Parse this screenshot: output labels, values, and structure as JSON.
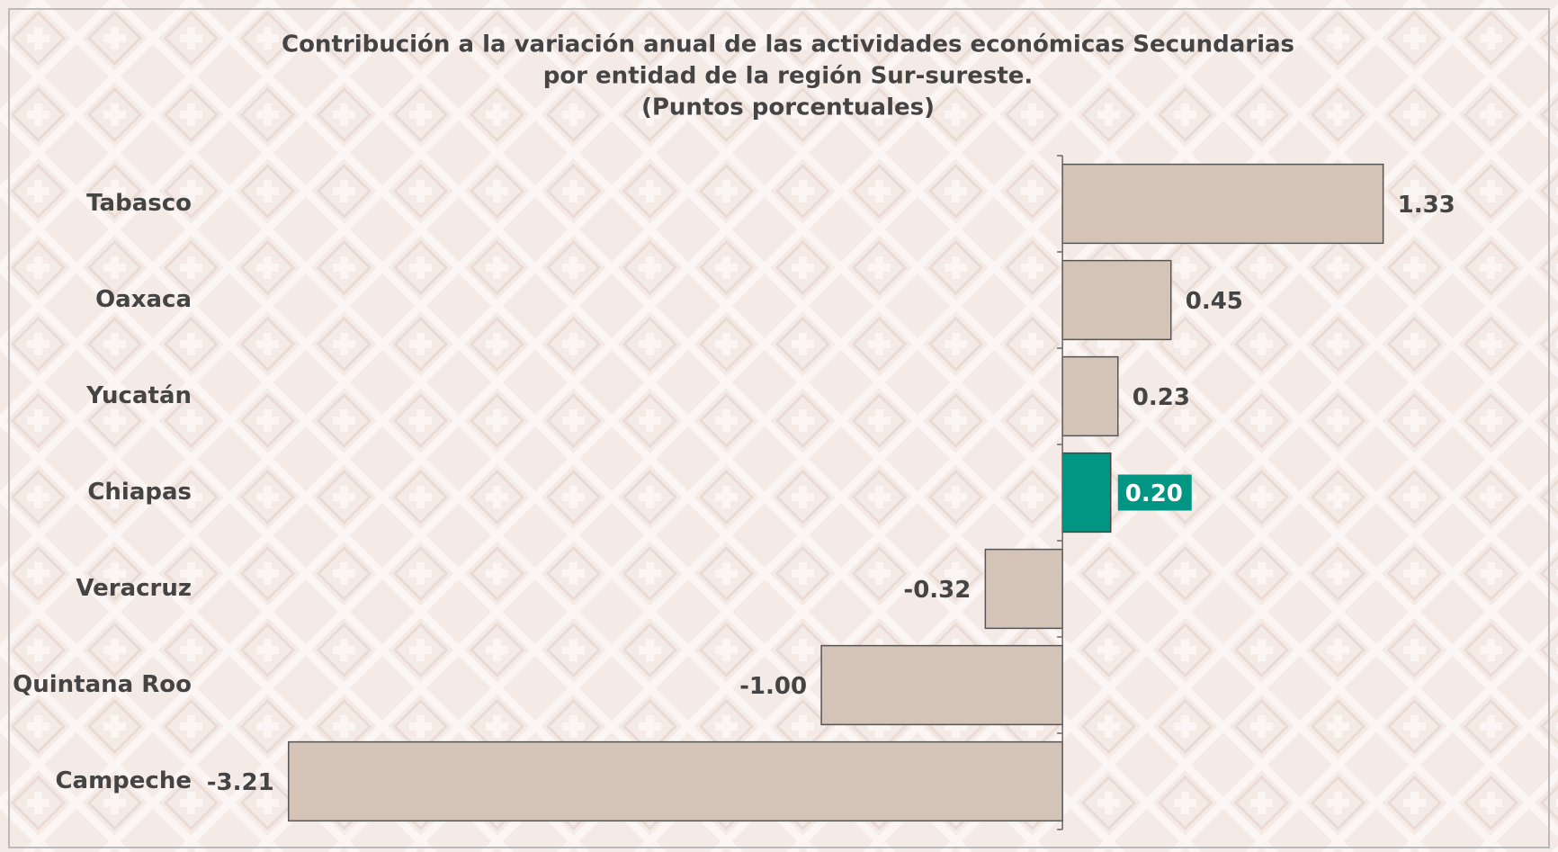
{
  "chart_data": {
    "type": "bar",
    "orientation": "horizontal",
    "title": [
      "Contribución a la variación anual de las actividades económicas Secundarias",
      "por entidad de la región Sur-sureste."
    ],
    "subtitle": "(Puntos porcentuales)",
    "categories": [
      "Tabasco",
      "Oaxaca",
      "Yucatán",
      "Chiapas",
      "Veracruz",
      "Quintana Roo",
      "Campeche"
    ],
    "values": [
      1.33,
      0.45,
      0.23,
      0.2,
      -0.32,
      -1.0,
      -3.21
    ],
    "value_labels": [
      "1.33",
      "0.45",
      "0.23",
      "0.20",
      "-0.32",
      "-1.00",
      "-3.21"
    ],
    "colors": [
      "#d4c4b7",
      "#d4c4b7",
      "#d4c4b7",
      "#009683",
      "#d4c4b7",
      "#d4c4b7",
      "#d4c4b7"
    ],
    "highlight": 3,
    "xlim": [
      -3.5,
      1.6
    ]
  }
}
